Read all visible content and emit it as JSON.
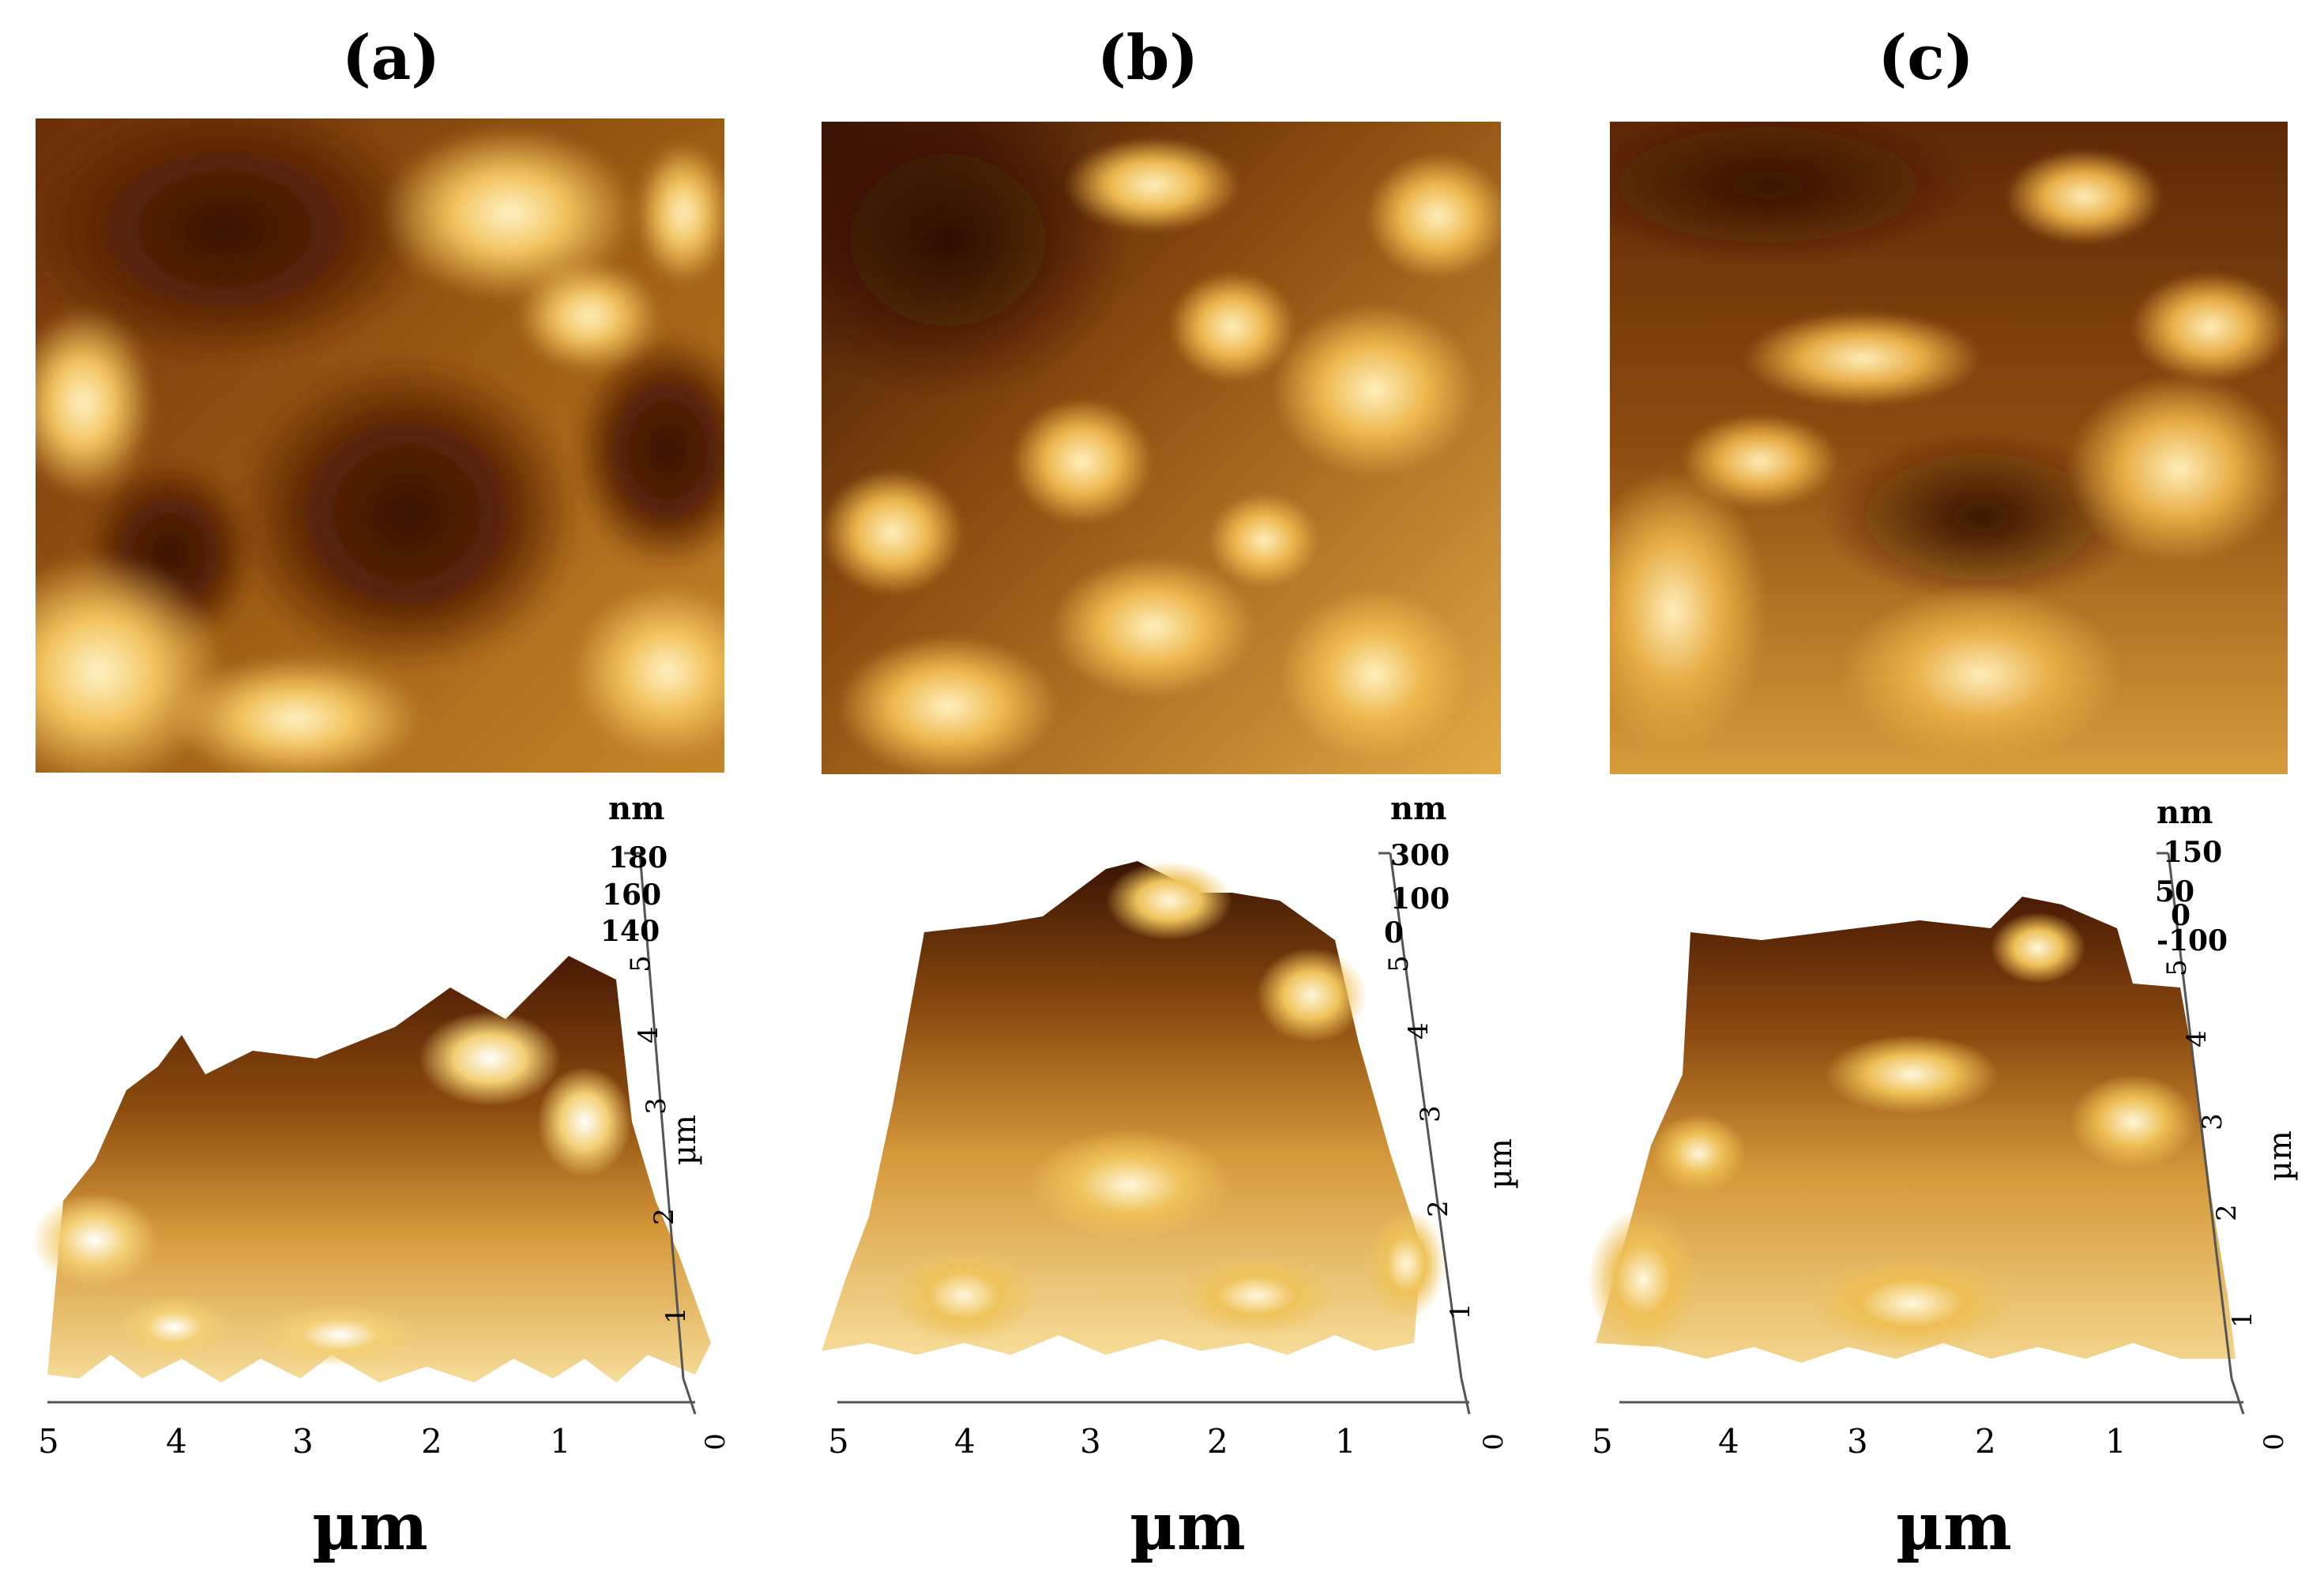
{
  "panels": [
    {
      "label": "(a)",
      "z_unit": "nm",
      "z_ticks": [
        "180",
        "160",
        "140"
      ],
      "y_ticks": [
        "1",
        "2",
        "3",
        "4",
        "5"
      ],
      "y_unit": "µm",
      "x_ticks": [
        "5",
        "4",
        "3",
        "2",
        "1"
      ],
      "x_zero": "0",
      "x_unit": "µm"
    },
    {
      "label": "(b)",
      "z_unit": "nm",
      "z_ticks": [
        "300",
        "100",
        "0"
      ],
      "y_ticks": [
        "1",
        "2",
        "3",
        "4",
        "5"
      ],
      "y_unit": "µm",
      "x_ticks": [
        "5",
        "4",
        "3",
        "2",
        "1"
      ],
      "x_zero": "0",
      "x_unit": "µm"
    },
    {
      "label": "(c)",
      "z_unit": "nm",
      "z_ticks": [
        "150",
        "50",
        "0",
        "-100"
      ],
      "y_ticks": [
        "1",
        "2",
        "3",
        "4",
        "5"
      ],
      "y_unit": "µm",
      "x_ticks": [
        "5",
        "4",
        "3",
        "2",
        "1"
      ],
      "x_zero": "0",
      "x_unit": "µm"
    }
  ],
  "colors": {
    "afm_dark": "#3a1405",
    "afm_mid": "#a5630f",
    "afm_light": "#f2c458",
    "afm_highlight": "#fff4cf"
  }
}
